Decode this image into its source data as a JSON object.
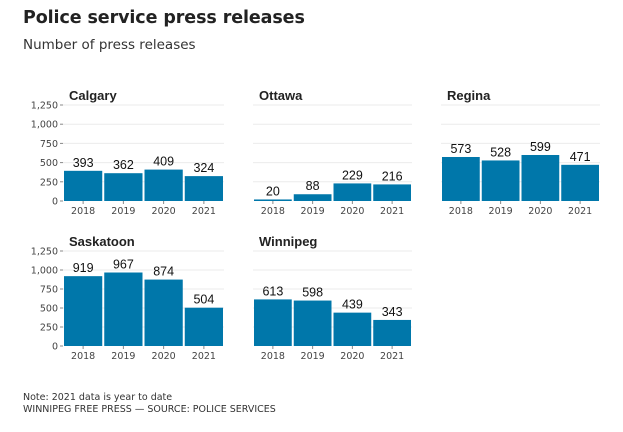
{
  "header": {
    "title": "Police service press releases",
    "subtitle": "Number of press releases"
  },
  "footer": {
    "note": "Note: 2021 data is year to date",
    "source": "WINNIPEG FREE PRESS — SOURCE: POLICE SERVICES"
  },
  "colors": {
    "bar": "#0077aa"
  },
  "chart_data": {
    "type": "bar",
    "title": "Police service press releases",
    "subtitle": "Number of press releases",
    "xlabel": "",
    "ylabel": "",
    "ylim": [
      0,
      1250
    ],
    "yticks": [
      0,
      250,
      500,
      750,
      1000,
      1250
    ],
    "ytick_labels": [
      "0",
      "250",
      "500",
      "750",
      "1,000",
      "1,250"
    ],
    "grid": true,
    "legend": "none",
    "categories": [
      "2018",
      "2019",
      "2020",
      "2021"
    ],
    "panels": [
      {
        "name": "Calgary",
        "values": [
          393,
          362,
          409,
          324
        ]
      },
      {
        "name": "Ottawa",
        "values": [
          20,
          88,
          229,
          216
        ]
      },
      {
        "name": "Regina",
        "values": [
          573,
          528,
          599,
          471
        ]
      },
      {
        "name": "Saskatoon",
        "values": [
          919,
          967,
          874,
          504
        ]
      },
      {
        "name": "Winnipeg",
        "values": [
          613,
          598,
          439,
          343
        ]
      }
    ]
  }
}
